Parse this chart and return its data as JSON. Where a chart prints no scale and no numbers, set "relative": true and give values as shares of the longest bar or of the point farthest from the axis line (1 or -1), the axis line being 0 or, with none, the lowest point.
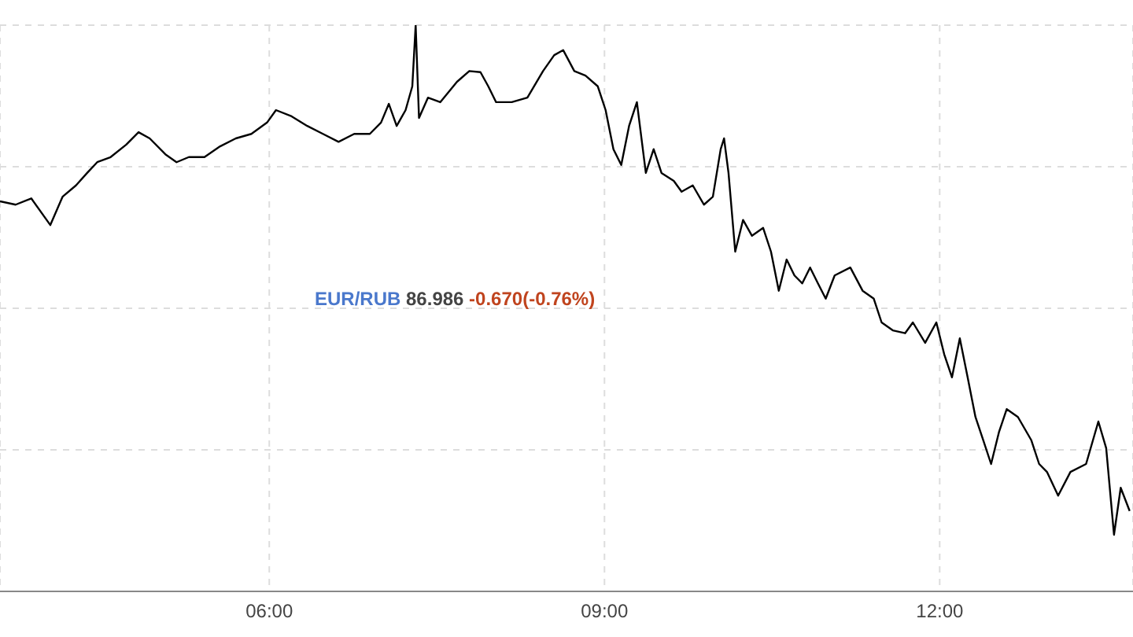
{
  "chart_data": {
    "type": "line",
    "relative": true,
    "color": "#000000",
    "grid": true,
    "marker": "none",
    "line_style": "solid",
    "xlim": [
      3.59,
      13.73
    ],
    "xticks": [
      {
        "value": 6,
        "label": "06:00"
      },
      {
        "value": 9,
        "label": "09:00"
      },
      {
        "value": 12,
        "label": "12:00"
      }
    ],
    "tick_labels": "x",
    "annotations": [
      "EUR/RUB 86.986 -0.670(-0.76%)"
    ],
    "x": [
      3.59,
      3.73,
      3.87,
      4.04,
      4.15,
      4.27,
      4.37,
      4.46,
      4.58,
      4.72,
      4.83,
      4.93,
      5.07,
      5.17,
      5.28,
      5.42,
      5.56,
      5.7,
      5.84,
      5.98,
      6.06,
      6.2,
      6.34,
      6.48,
      6.62,
      6.76,
      6.9,
      7.0,
      7.07,
      7.14,
      7.22,
      7.28,
      7.31,
      7.34,
      7.42,
      7.53,
      7.68,
      7.79,
      7.89,
      7.96,
      8.03,
      8.17,
      8.31,
      8.45,
      8.55,
      8.63,
      8.73,
      8.83,
      8.94,
      9.01,
      9.08,
      9.15,
      9.22,
      9.29,
      9.37,
      9.44,
      9.51,
      9.62,
      9.69,
      9.79,
      9.89,
      9.97,
      10.04,
      10.07,
      10.11,
      10.17,
      10.24,
      10.32,
      10.42,
      10.49,
      10.56,
      10.63,
      10.7,
      10.77,
      10.84,
      10.91,
      10.98,
      11.06,
      11.2,
      11.31,
      11.41,
      11.48,
      11.58,
      11.69,
      11.76,
      11.87,
      11.97,
      12.04,
      12.11,
      12.18,
      12.25,
      12.32,
      12.39,
      12.46,
      12.53,
      12.6,
      12.7,
      12.82,
      12.89,
      12.96,
      13.06,
      13.17,
      13.31,
      13.42,
      13.49,
      13.56,
      13.62,
      13.7
    ],
    "values": [
      0.689,
      0.683,
      0.694,
      0.647,
      0.697,
      0.717,
      0.739,
      0.758,
      0.767,
      0.789,
      0.811,
      0.8,
      0.772,
      0.758,
      0.767,
      0.767,
      0.786,
      0.8,
      0.808,
      0.828,
      0.85,
      0.839,
      0.822,
      0.808,
      0.794,
      0.808,
      0.808,
      0.828,
      0.861,
      0.822,
      0.85,
      0.892,
      1,
      0.836,
      0.872,
      0.864,
      0.9,
      0.919,
      0.917,
      0.892,
      0.864,
      0.864,
      0.872,
      0.919,
      0.947,
      0.956,
      0.919,
      0.911,
      0.892,
      0.85,
      0.781,
      0.753,
      0.822,
      0.864,
      0.739,
      0.781,
      0.739,
      0.725,
      0.706,
      0.717,
      0.683,
      0.697,
      0.781,
      0.8,
      0.739,
      0.6,
      0.656,
      0.628,
      0.642,
      0.6,
      0.531,
      0.586,
      0.558,
      0.544,
      0.572,
      0.544,
      0.517,
      0.558,
      0.572,
      0.531,
      0.517,
      0.475,
      0.461,
      0.456,
      0.475,
      0.439,
      0.475,
      0.419,
      0.378,
      0.447,
      0.378,
      0.308,
      0.267,
      0.225,
      0.281,
      0.322,
      0.308,
      0.267,
      0.225,
      0.211,
      0.169,
      0.211,
      0.225,
      0.3,
      0.253,
      0.1,
      0.183,
      0.142
    ]
  }
}
